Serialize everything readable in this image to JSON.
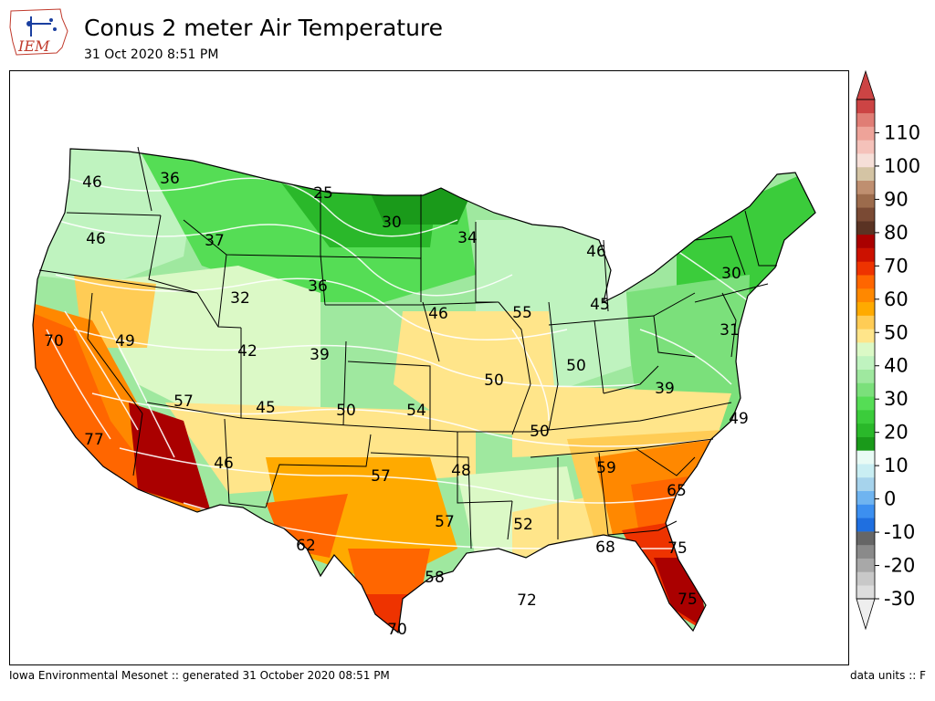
{
  "header": {
    "title": "Conus 2 meter Air Temperature",
    "subtitle": "31 Oct 2020 8:51 PM",
    "logo_text": "IEM"
  },
  "footer": {
    "left": "Iowa Environmental Mesonet :: generated 31 October 2020 08:51 PM",
    "right": "data units :: F"
  },
  "map": {
    "labels": [
      {
        "text": "46",
        "region": "western-washington"
      },
      {
        "text": "36",
        "region": "northern-idaho"
      },
      {
        "text": "25",
        "region": "northern-montana"
      },
      {
        "text": "30",
        "region": "north-dakota"
      },
      {
        "text": "34",
        "region": "northern-minnesota"
      },
      {
        "text": "46",
        "region": "upper-michigan"
      },
      {
        "text": "46",
        "region": "western-oregon"
      },
      {
        "text": "37",
        "region": "western-montana"
      },
      {
        "text": "36",
        "region": "wyoming-north"
      },
      {
        "text": "32",
        "region": "wyoming-west"
      },
      {
        "text": "30",
        "region": "new-york"
      },
      {
        "text": "45",
        "region": "lower-michigan"
      },
      {
        "text": "46",
        "region": "iowa"
      },
      {
        "text": "55",
        "region": "illinois-north"
      },
      {
        "text": "70",
        "region": "northern-california"
      },
      {
        "text": "49",
        "region": "nevada"
      },
      {
        "text": "42",
        "region": "utah"
      },
      {
        "text": "39",
        "region": "colorado-east"
      },
      {
        "text": "31",
        "region": "mid-atlantic"
      },
      {
        "text": "50",
        "region": "missouri"
      },
      {
        "text": "50",
        "region": "ohio"
      },
      {
        "text": "39",
        "region": "west-virginia"
      },
      {
        "text": "57",
        "region": "arizona-north"
      },
      {
        "text": "45",
        "region": "colorado-south"
      },
      {
        "text": "50",
        "region": "oklahoma-panhandle"
      },
      {
        "text": "54",
        "region": "kansas"
      },
      {
        "text": "50",
        "region": "kentucky"
      },
      {
        "text": "49",
        "region": "virginia-coast"
      },
      {
        "text": "77",
        "region": "southern-california"
      },
      {
        "text": "46",
        "region": "new-mexico"
      },
      {
        "text": "57",
        "region": "texas-north"
      },
      {
        "text": "48",
        "region": "arkansas"
      },
      {
        "text": "59",
        "region": "georgia-north"
      },
      {
        "text": "65",
        "region": "south-carolina"
      },
      {
        "text": "57",
        "region": "east-texas"
      },
      {
        "text": "52",
        "region": "mississippi"
      },
      {
        "text": "62",
        "region": "west-texas"
      },
      {
        "text": "68",
        "region": "florida-panhandle"
      },
      {
        "text": "75",
        "region": "north-florida"
      },
      {
        "text": "58",
        "region": "south-texas"
      },
      {
        "text": "72",
        "region": "gulf-of-mexico"
      },
      {
        "text": "75",
        "region": "south-florida"
      },
      {
        "text": "70",
        "region": "texas-tip"
      }
    ]
  },
  "colorbar": {
    "units": "F",
    "min": -30,
    "max": 120,
    "step": 5,
    "tick_labels": [
      "110",
      "100",
      "90",
      "80",
      "70",
      "60",
      "50",
      "40",
      "30",
      "20",
      "10",
      "0",
      "-10",
      "-20",
      "-30"
    ],
    "colors": [
      "#dddddd",
      "#c8c8c8",
      "#a8a8a8",
      "#8a8a8a",
      "#666666",
      "#1f6fe0",
      "#3c8ff0",
      "#6fb4f0",
      "#a6d3ec",
      "#c9eef3",
      "#e8fbf5",
      "#1a9a1a",
      "#2ab82a",
      "#3bcc3b",
      "#55dd55",
      "#7be07b",
      "#9fe89f",
      "#bff3bf",
      "#dbf9c6",
      "#ffe58a",
      "#ffcc55",
      "#ffaa00",
      "#ff8800",
      "#ff6600",
      "#ee3300",
      "#cc1100",
      "#aa0000",
      "#5a3323",
      "#7a4a34",
      "#9c6b4c",
      "#bf8f70",
      "#d4c4a4",
      "#f6dfd8",
      "#f5c2ba",
      "#eea399",
      "#e07d75",
      "#cc4444"
    ],
    "over_color": "#cc4444",
    "under_color": "#eeeeee"
  }
}
